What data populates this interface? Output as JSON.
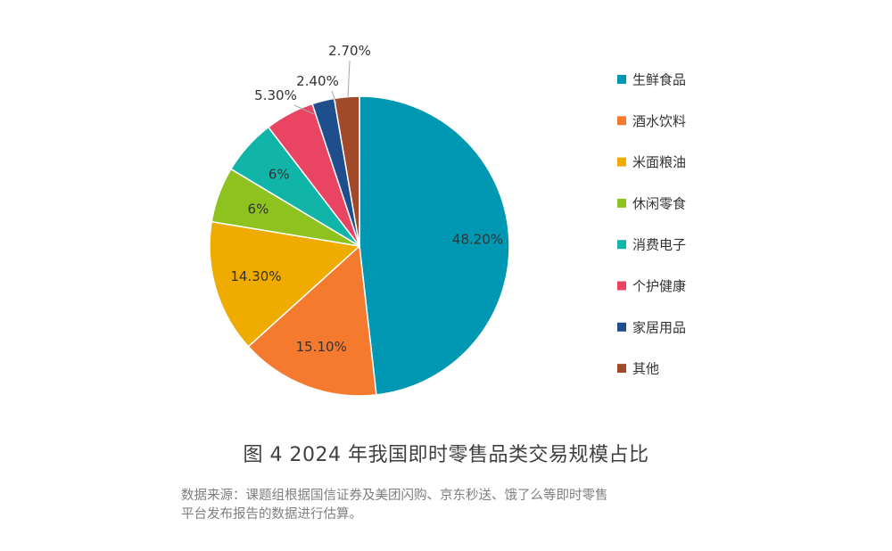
{
  "chart_data": {
    "type": "pie",
    "title": "图 4  2024 年我国即时零售品类交易规模占比",
    "labels": [
      "生鲜食品",
      "酒水饮料",
      "米面粮油",
      "休闲零食",
      "消费电子",
      "个护健康",
      "家居用品",
      "其他"
    ],
    "values": [
      48.2,
      15.1,
      14.3,
      6,
      6,
      5.3,
      2.4,
      2.7
    ],
    "value_labels": [
      "48.20%",
      "15.10%",
      "14.30%",
      "6%",
      "6%",
      "5.30%",
      "2.40%",
      "2.70%"
    ],
    "colors": [
      "#0097b2",
      "#f47a30",
      "#f0ab00",
      "#8dc21f",
      "#11b5a7",
      "#e94563",
      "#1f4e8c",
      "#a14a2a"
    ],
    "start": "12 o'clock",
    "direction": "clockwise",
    "legend_position": "right"
  },
  "source_note": {
    "line1": "数据来源：课题组根据国信证券及美团闪购、京东秒送、饿了么等即时零售",
    "line2": "平台发布报告的数据进行估算。"
  }
}
